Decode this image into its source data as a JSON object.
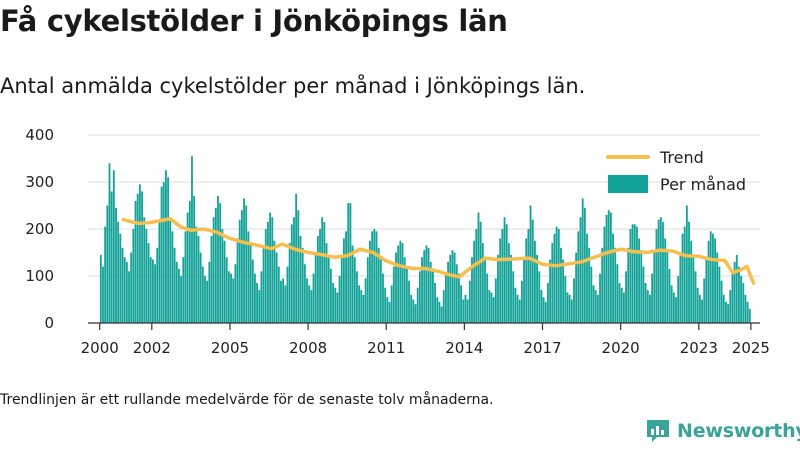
{
  "title": "Få cykelstölder i Jönköpings län",
  "subtitle": "Antal anmälda cykelstölder per månad i Jönköpings län.",
  "note": "Trendlinjen är ett rullande medelvärde för de senaste tolv månaderna.",
  "brand": {
    "name": "Newsworthy",
    "icon": "newsworthy-logo-icon",
    "color": "#3aa39a"
  },
  "colors": {
    "bars": "#12a297",
    "trend": "#f6bf4f",
    "grid": "#dddddd",
    "axis": "#333333"
  },
  "chart_data": {
    "type": "bar",
    "title": "Få cykelstölder i Jönköpings län",
    "subtitle": "Antal anmälda cykelstölder per månad i Jönköpings län.",
    "xlabel": "",
    "ylabel": "",
    "ylim": [
      0,
      400
    ],
    "yticks": [
      0,
      100,
      200,
      300,
      400
    ],
    "xticks": [
      2000,
      2002,
      2005,
      2008,
      2011,
      2014,
      2017,
      2020,
      2023,
      2025
    ],
    "grid": true,
    "legend_position": "top-right",
    "x_start": "2000-01",
    "x_end": "2025-01",
    "series": [
      {
        "name": "Trend",
        "type": "line",
        "x": [
          2000.9,
          2001.5,
          2002.0,
          2002.7,
          2003.1,
          2003.5,
          2004.0,
          2004.5,
          2005.0,
          2005.5,
          2006.0,
          2006.6,
          2007.0,
          2007.5,
          2008.0,
          2008.5,
          2009.0,
          2009.5,
          2010.0,
          2010.5,
          2011.0,
          2011.5,
          2012.0,
          2012.5,
          2013.0,
          2013.4,
          2013.8,
          2014.3,
          2014.8,
          2015.3,
          2015.8,
          2016.5,
          2017.0,
          2017.5,
          2018.0,
          2018.5,
          2019.0,
          2019.5,
          2020.0,
          2020.5,
          2021.0,
          2021.5,
          2022.0,
          2022.5,
          2023.0,
          2023.5,
          2024.0,
          2024.3,
          2024.6,
          2024.85,
          2025.1
        ],
        "values": [
          220,
          212,
          214,
          222,
          205,
          197,
          200,
          193,
          180,
          172,
          166,
          158,
          168,
          157,
          150,
          146,
          140,
          143,
          157,
          150,
          132,
          122,
          116,
          116,
          110,
          103,
          98,
          120,
          138,
          135,
          136,
          138,
          125,
          122,
          126,
          130,
          140,
          150,
          157,
          152,
          150,
          155,
          153,
          143,
          142,
          135,
          133,
          107,
          113,
          120,
          85
        ]
      },
      {
        "name": "Per månad",
        "type": "bar",
        "description_values_by_year": {
          "2000": [
            145,
            120,
            205,
            250,
            340,
            280,
            325,
            245,
            215,
            190,
            160,
            140
          ],
          "2001": [
            130,
            110,
            150,
            200,
            260,
            275,
            295,
            280,
            225,
            200,
            170,
            140
          ],
          "2002": [
            135,
            125,
            160,
            215,
            290,
            300,
            325,
            310,
            225,
            195,
            160,
            130
          ],
          "2003": [
            115,
            100,
            140,
            195,
            235,
            260,
            355,
            270,
            205,
            185,
            150,
            120
          ],
          "2004": [
            100,
            90,
            130,
            185,
            225,
            245,
            270,
            255,
            200,
            175,
            140,
            110
          ],
          "2005": [
            105,
            95,
            125,
            180,
            220,
            240,
            265,
            250,
            195,
            170,
            135,
            105
          ],
          "2006": [
            85,
            70,
            110,
            160,
            200,
            215,
            235,
            225,
            175,
            150,
            120,
            90
          ],
          "2007": [
            95,
            80,
            120,
            170,
            210,
            225,
            275,
            240,
            185,
            160,
            125,
            95
          ],
          "2008": [
            80,
            70,
            105,
            150,
            185,
            200,
            225,
            215,
            170,
            145,
            115,
            85
          ],
          "2009": [
            75,
            65,
            100,
            145,
            180,
            195,
            255,
            255,
            165,
            140,
            110,
            80
          ],
          "2010": [
            70,
            60,
            95,
            140,
            175,
            195,
            200,
            195,
            160,
            135,
            105,
            75
          ],
          "2011": [
            55,
            45,
            80,
            120,
            150,
            165,
            175,
            170,
            140,
            115,
            90,
            60
          ],
          "2012": [
            50,
            40,
            75,
            110,
            140,
            155,
            165,
            160,
            130,
            110,
            85,
            55
          ],
          "2013": [
            45,
            35,
            70,
            105,
            130,
            145,
            155,
            150,
            125,
            105,
            80,
            50
          ],
          "2014": [
            60,
            50,
            90,
            140,
            175,
            200,
            235,
            215,
            170,
            140,
            105,
            70
          ],
          "2015": [
            65,
            55,
            95,
            145,
            180,
            200,
            225,
            210,
            170,
            145,
            110,
            75
          ],
          "2016": [
            60,
            50,
            90,
            140,
            180,
            200,
            250,
            220,
            175,
            145,
            110,
            70
          ],
          "2017": [
            55,
            45,
            85,
            135,
            170,
            190,
            205,
            200,
            160,
            135,
            100,
            65
          ],
          "2018": [
            60,
            50,
            95,
            150,
            195,
            225,
            265,
            245,
            190,
            160,
            120,
            80
          ],
          "2019": [
            70,
            60,
            105,
            160,
            205,
            230,
            240,
            235,
            190,
            160,
            125,
            85
          ],
          "2020": [
            75,
            65,
            110,
            160,
            200,
            210,
            210,
            205,
            180,
            155,
            120,
            85
          ],
          "2021": [
            70,
            60,
            105,
            155,
            200,
            220,
            225,
            215,
            180,
            150,
            115,
            80
          ],
          "2022": [
            65,
            55,
            100,
            150,
            190,
            205,
            250,
            215,
            175,
            145,
            110,
            75
          ],
          "2023": [
            60,
            50,
            95,
            140,
            175,
            195,
            190,
            180,
            150,
            120,
            90,
            60
          ],
          "2024": [
            45,
            40,
            70,
            110,
            130,
            145,
            120,
            100,
            85,
            60,
            45,
            30
          ]
        }
      }
    ]
  }
}
